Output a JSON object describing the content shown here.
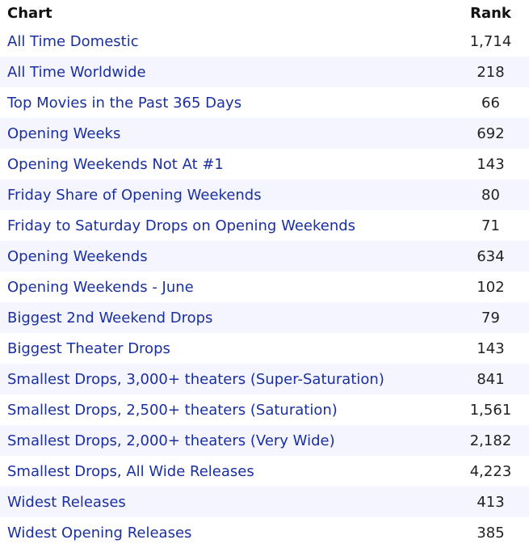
{
  "header": {
    "chart": "Chart",
    "rank": "Rank"
  },
  "rows": [
    {
      "chart": "All Time Domestic",
      "rank": "1,714"
    },
    {
      "chart": "All Time Worldwide",
      "rank": "218"
    },
    {
      "chart": "Top Movies in the Past 365 Days",
      "rank": "66"
    },
    {
      "chart": "Opening Weeks",
      "rank": "692"
    },
    {
      "chart": "Opening Weekends Not At #1",
      "rank": "143"
    },
    {
      "chart": "Friday Share of Opening Weekends",
      "rank": "80"
    },
    {
      "chart": "Friday to Saturday Drops on Opening Weekends",
      "rank": "71"
    },
    {
      "chart": "Opening Weekends",
      "rank": "634"
    },
    {
      "chart": "Opening Weekends - June",
      "rank": "102"
    },
    {
      "chart": "Biggest 2nd Weekend Drops",
      "rank": "79"
    },
    {
      "chart": "Biggest Theater Drops",
      "rank": "143"
    },
    {
      "chart": "Smallest Drops, 3,000+ theaters (Super-Saturation)",
      "rank": "841"
    },
    {
      "chart": "Smallest Drops, 2,500+ theaters (Saturation)",
      "rank": "1,561"
    },
    {
      "chart": "Smallest Drops, 2,000+ theaters (Very Wide)",
      "rank": "2,182"
    },
    {
      "chart": "Smallest Drops, All Wide Releases",
      "rank": "4,223"
    },
    {
      "chart": "Widest Releases",
      "rank": "413"
    },
    {
      "chart": "Widest Opening Releases",
      "rank": "385"
    }
  ],
  "colors": {
    "link": "#1a2fa0",
    "stripe": "#f5f5ff"
  }
}
